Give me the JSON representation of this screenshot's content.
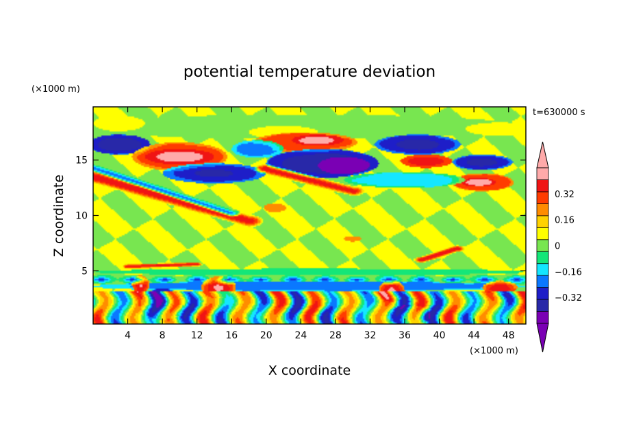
{
  "chart_data": {
    "type": "heatmap",
    "title": "potential temperature deviation",
    "xlabel": "X coordinate",
    "ylabel": "Z coordinate",
    "x_unit": "(×1000 m)",
    "y_unit": "(×1000 m)",
    "time_label": "t=630000 s",
    "xlim": [
      0,
      50
    ],
    "ylim": [
      0.2,
      19.8
    ],
    "x_ticks": [
      "4",
      "8",
      "12",
      "16",
      "20",
      "24",
      "28",
      "32",
      "36",
      "40",
      "44",
      "48"
    ],
    "y_ticks": [
      "5",
      "10",
      "15"
    ],
    "colorbar": {
      "levels": [
        -0.48,
        -0.4,
        -0.32,
        -0.24,
        -0.16,
        -0.08,
        0,
        0.08,
        0.16,
        0.24,
        0.32,
        0.4,
        0.48
      ],
      "tick_labels": [
        "0.32",
        "0.16",
        "0",
        "−0.16",
        "−0.32"
      ],
      "tick_values": [
        0.32,
        0.16,
        0,
        -0.16,
        -0.32
      ],
      "colors": [
        "#7a00b4",
        "#2828a8",
        "#1e1ec8",
        "#0a78ff",
        "#14e6ff",
        "#14e678",
        "#78e650",
        "#ffff00",
        "#ffd200",
        "#ff8c00",
        "#ff3c00",
        "#f01414",
        "#ffaaaa"
      ],
      "extend": "both"
    },
    "background_value": 0.04,
    "features": [
      {
        "kind": "ellipse",
        "x": 24,
        "z": 18,
        "rx": 26,
        "rz": 1.1,
        "value": -0.04
      },
      {
        "kind": "ellipse",
        "x": 3,
        "z": 18.3,
        "rx": 3,
        "rz": 0.7,
        "value": 0.1
      },
      {
        "kind": "ellipse",
        "x": 22,
        "z": 17.5,
        "rx": 4,
        "rz": 0.6,
        "value": 0.1
      },
      {
        "kind": "ellipse",
        "x": 47,
        "z": 17.8,
        "rx": 4,
        "rz": 0.6,
        "value": 0.1
      },
      {
        "kind": "ellipse",
        "x": 3,
        "z": 16.4,
        "rx": 3.6,
        "rz": 0.9,
        "value": -0.44
      },
      {
        "kind": "ellipse",
        "x": 10,
        "z": 15.3,
        "rx": 5.5,
        "rz": 1.3,
        "value": 0.36
      },
      {
        "kind": "ellipse",
        "x": 10,
        "z": 15.3,
        "rx": 4,
        "rz": 0.7,
        "value": 0.46
      },
      {
        "kind": "ellipse",
        "x": 24.5,
        "z": 16.6,
        "rx": 6,
        "rz": 0.9,
        "value": 0.36
      },
      {
        "kind": "ellipse",
        "x": 26,
        "z": 16.8,
        "rx": 3,
        "rz": 0.5,
        "value": 0.46
      },
      {
        "kind": "ellipse",
        "x": 19,
        "z": 16,
        "rx": 3,
        "rz": 0.8,
        "value": -0.26
      },
      {
        "kind": "ellipse",
        "x": 26.5,
        "z": 14.7,
        "rx": 6.5,
        "rz": 1.3,
        "value": -0.44
      },
      {
        "kind": "ellipse",
        "x": 29,
        "z": 14.5,
        "rx": 3,
        "rz": 0.8,
        "value": -0.5
      },
      {
        "kind": "ellipse",
        "x": 37.5,
        "z": 16.4,
        "rx": 5,
        "rz": 0.9,
        "value": -0.4
      },
      {
        "kind": "ellipse",
        "x": 38.5,
        "z": 14.9,
        "rx": 3,
        "rz": 0.6,
        "value": 0.42
      },
      {
        "kind": "ellipse",
        "x": 45,
        "z": 14.8,
        "rx": 3.5,
        "rz": 0.7,
        "value": -0.4
      },
      {
        "kind": "ellipse",
        "x": 45,
        "z": 13,
        "rx": 3.6,
        "rz": 0.8,
        "value": 0.38
      },
      {
        "kind": "ellipse",
        "x": 44.5,
        "z": 13,
        "rx": 2,
        "rz": 0.4,
        "value": 0.46
      },
      {
        "kind": "ellipse",
        "x": 14,
        "z": 13.8,
        "rx": 6,
        "rz": 0.9,
        "value": -0.38
      },
      {
        "kind": "ellipse",
        "x": 36,
        "z": 13.2,
        "rx": 7,
        "rz": 0.7,
        "value": -0.18
      },
      {
        "kind": "ellipse",
        "x": 21,
        "z": 10.7,
        "rx": 1.3,
        "rz": 0.4,
        "value": 0.28
      },
      {
        "kind": "ellipse",
        "x": 30,
        "z": 7.9,
        "rx": 1,
        "rz": 0.25,
        "value": 0.28
      },
      {
        "kind": "ellipse",
        "x": 25,
        "z": 4.9,
        "rx": 25,
        "rz": 0.3,
        "value": -0.1
      },
      {
        "kind": "ellipse",
        "x": 25,
        "z": 3.6,
        "rx": 25,
        "rz": 0.45,
        "value": -0.28
      },
      {
        "kind": "ellipse",
        "x": 34.5,
        "z": 3.2,
        "rx": 1.5,
        "rz": 1,
        "value": 0.46
      },
      {
        "kind": "ellipse",
        "x": 14.5,
        "z": 3.5,
        "rx": 2,
        "rz": 1,
        "value": 0.46
      },
      {
        "kind": "ellipse",
        "x": 5.5,
        "z": 3.8,
        "rx": 1,
        "rz": 0.8,
        "value": 0.46
      },
      {
        "kind": "ellipse",
        "x": 36.5,
        "z": 1,
        "rx": 2.5,
        "rz": 0.9,
        "value": -0.5
      },
      {
        "kind": "ellipse",
        "x": 8,
        "z": 2,
        "rx": 2.5,
        "rz": 1.4,
        "value": -0.42
      },
      {
        "kind": "ellipse",
        "x": 47,
        "z": 3.5,
        "rx": 2,
        "rz": 0.6,
        "value": 0.42
      },
      {
        "kind": "band",
        "z": 4.2,
        "z_width": 0.5,
        "value": -0.3
      },
      {
        "kind": "wavy",
        "z_min": 0.2,
        "z_max": 3.2,
        "amp": 0.42
      },
      {
        "kind": "streak",
        "x0": 0,
        "z0": 13.5,
        "x1": 18,
        "z1": 9.5,
        "width": 0.55,
        "value": 0.42
      },
      {
        "kind": "streak",
        "x0": 0,
        "z0": 14.3,
        "x1": 16,
        "z1": 10.2,
        "width": 0.35,
        "value": -0.22
      },
      {
        "kind": "streak",
        "x0": 20,
        "z0": 14.2,
        "x1": 30,
        "z1": 12.2,
        "width": 0.45,
        "value": 0.4
      },
      {
        "kind": "streak",
        "x0": 38,
        "z0": 6,
        "x1": 42,
        "z1": 7,
        "width": 0.3,
        "value": 0.44
      },
      {
        "kind": "streak",
        "x0": 4,
        "z0": 5.4,
        "x1": 12,
        "z1": 5.6,
        "width": 0.2,
        "value": 0.42
      }
    ]
  }
}
